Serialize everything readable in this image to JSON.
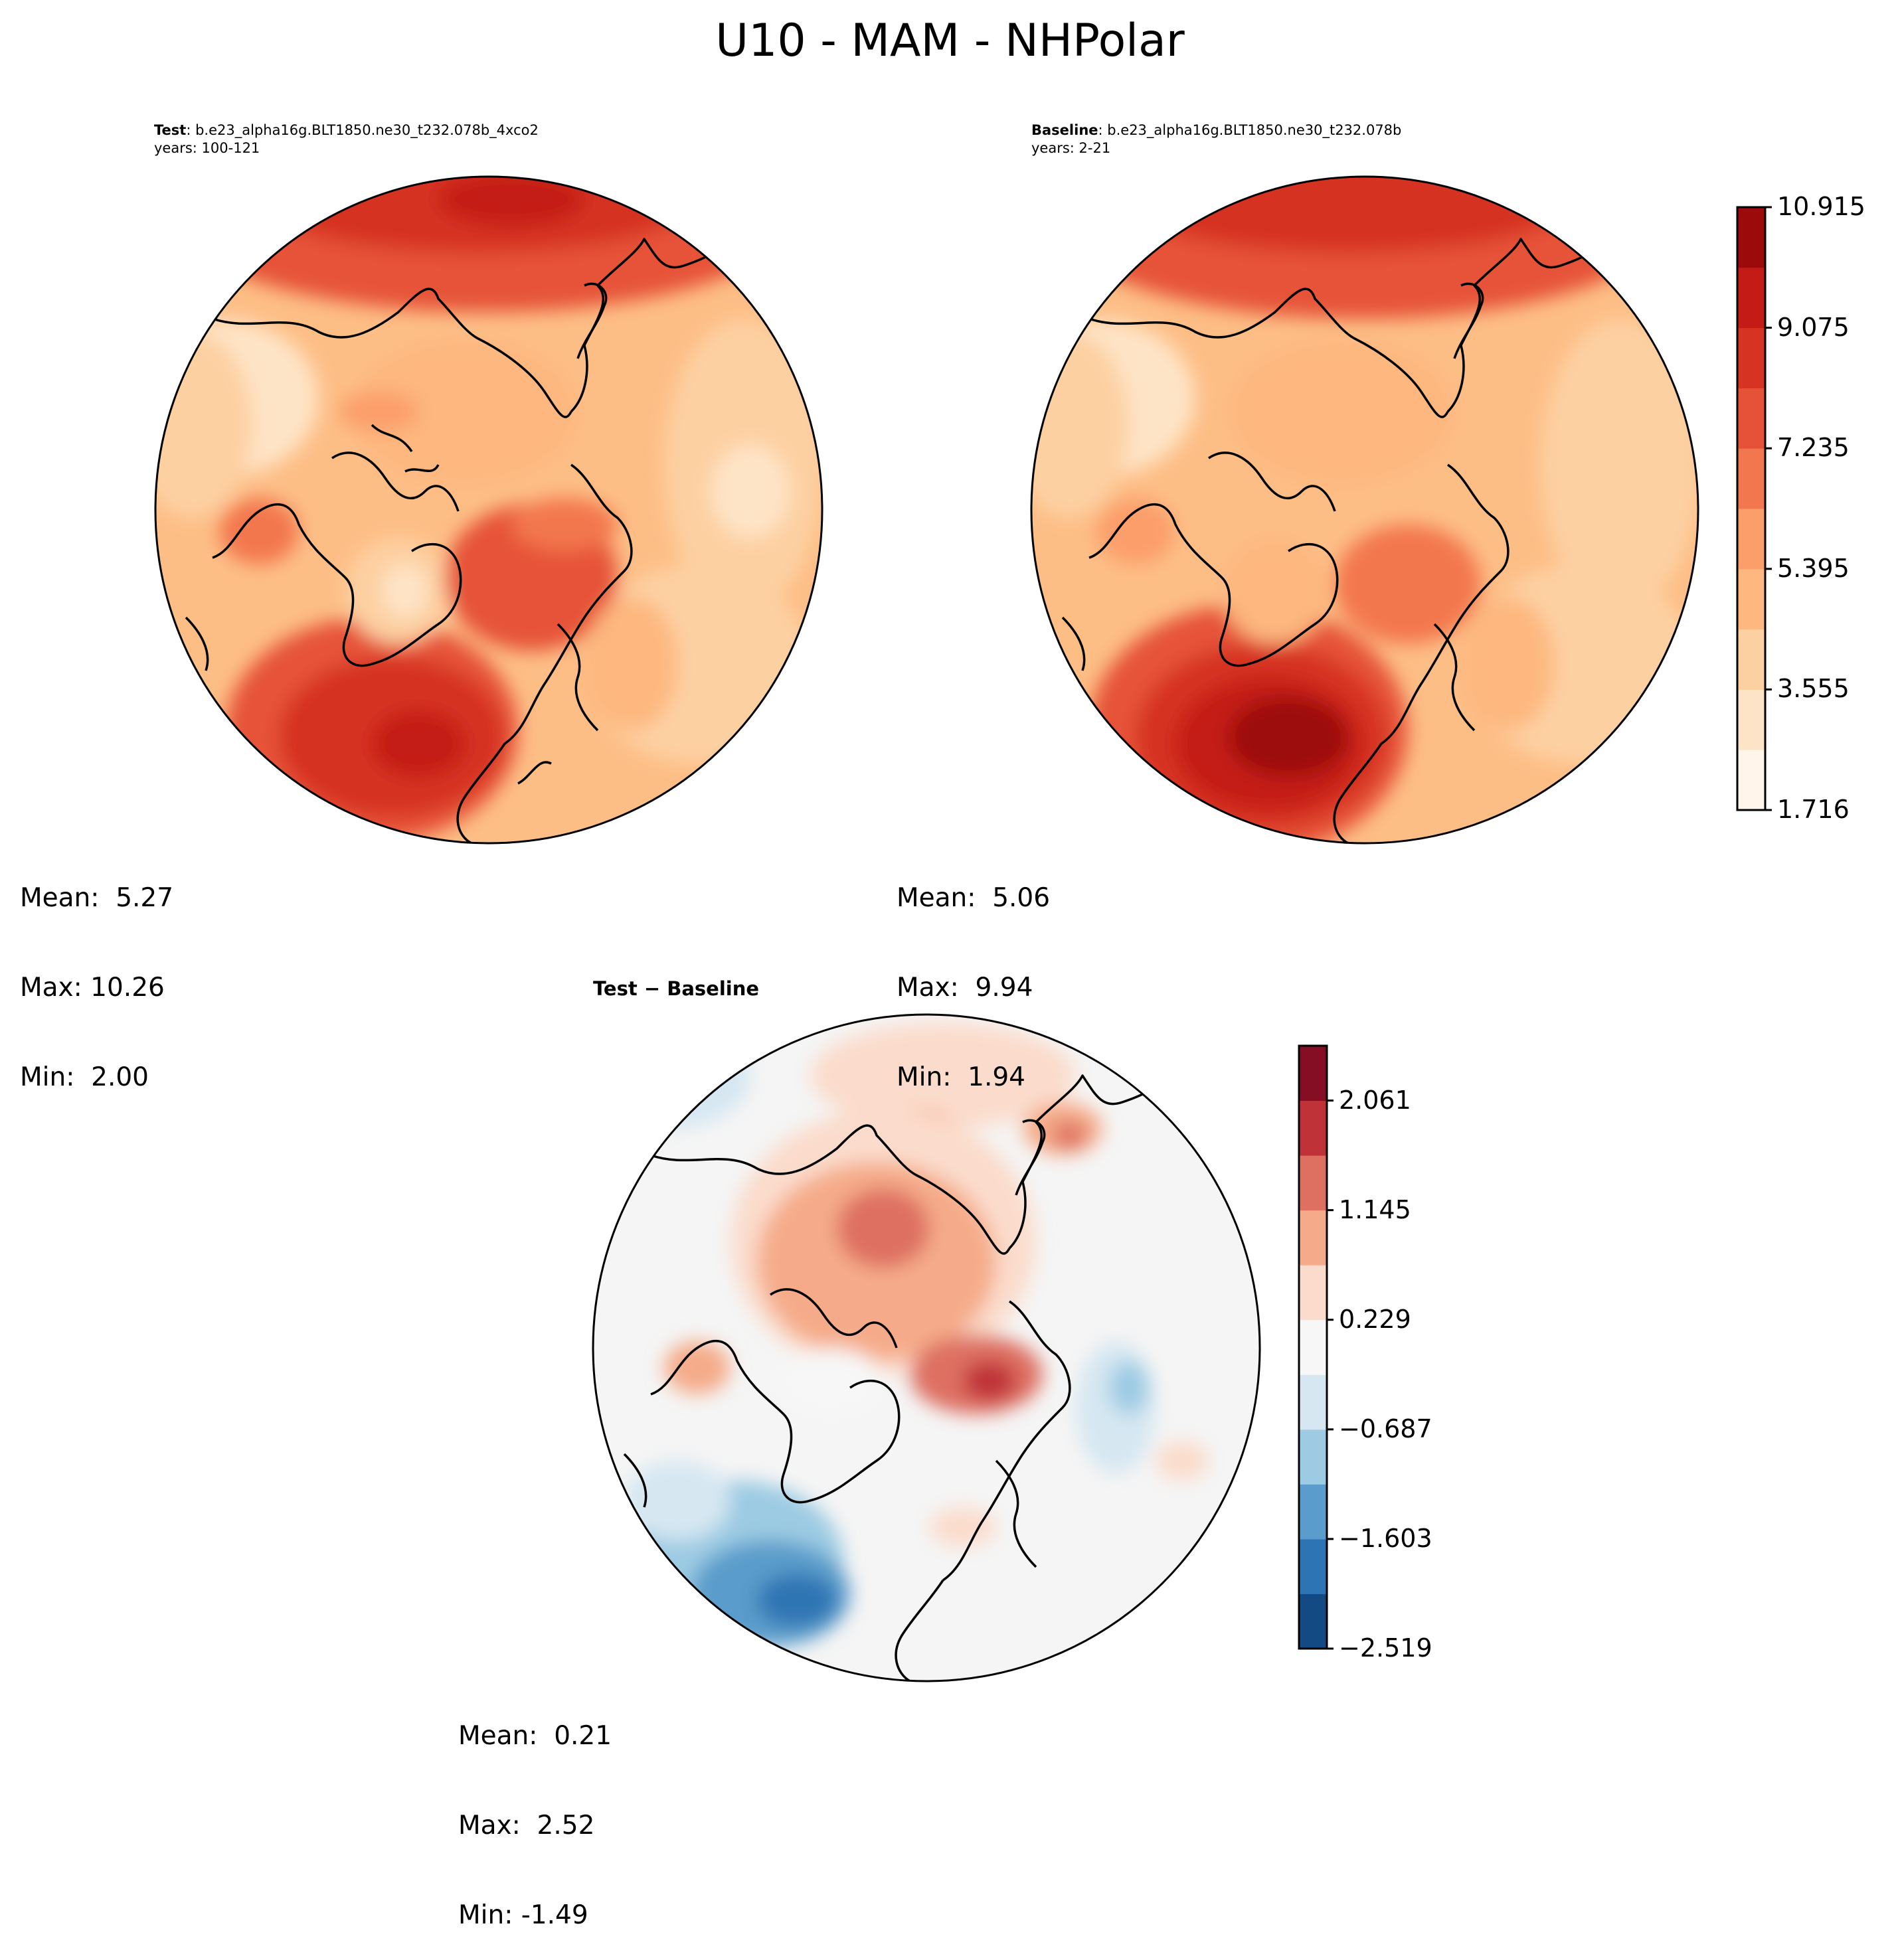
{
  "figure": {
    "title": "U10 - MAM - NHPolar"
  },
  "panels": [
    {
      "id": "test",
      "header_label": "Test",
      "header_case": ": b.e23_alpha16g.BLT1850.ne30_t232.078b_4xco2",
      "years": "years: 100-121",
      "stats": {
        "mean": "Mean:  5.27",
        "max": "Max: 10.26",
        "min": "Min:  2.00"
      }
    },
    {
      "id": "baseline",
      "header_label": "Baseline",
      "header_case": ": b.e23_alpha16g.BLT1850.ne30_t232.078b",
      "years": "years: 2-21",
      "stats": {
        "mean": "Mean:  5.06",
        "max": "Max:  9.94",
        "min": "Min:  1.94"
      }
    },
    {
      "id": "diff",
      "header_label": "Test − Baseline",
      "stats": {
        "mean": "Mean:  0.21",
        "max": "Max:  2.52",
        "min": "Min: -1.49"
      }
    }
  ],
  "colorbars": {
    "main": {
      "ticks": [
        "1.716",
        "3.555",
        "5.395",
        "7.235",
        "9.075",
        "10.915"
      ],
      "colors": [
        "#fff5eb",
        "#fee4c6",
        "#fdd0a2",
        "#fdb77f",
        "#fc9e6a",
        "#f3774e",
        "#e65238",
        "#d63322",
        "#c41b16",
        "#9d0a0c"
      ]
    },
    "diff": {
      "ticks": [
        "−2.519",
        "−1.603",
        "−0.687",
        "0.229",
        "1.145",
        "2.061"
      ],
      "colors": [
        "#134a83",
        "#2d74b4",
        "#5a9ccb",
        "#9ccbe3",
        "#d6e7f2",
        "#f7f7f7",
        "#fbdccc",
        "#f5ab89",
        "#de7062",
        "#bf3338",
        "#860e24"
      ]
    }
  },
  "map_fill": {
    "test_base": "#fdbe86",
    "baseline_base": "#fdbe86",
    "diff_base": "#f5f5f5"
  }
}
